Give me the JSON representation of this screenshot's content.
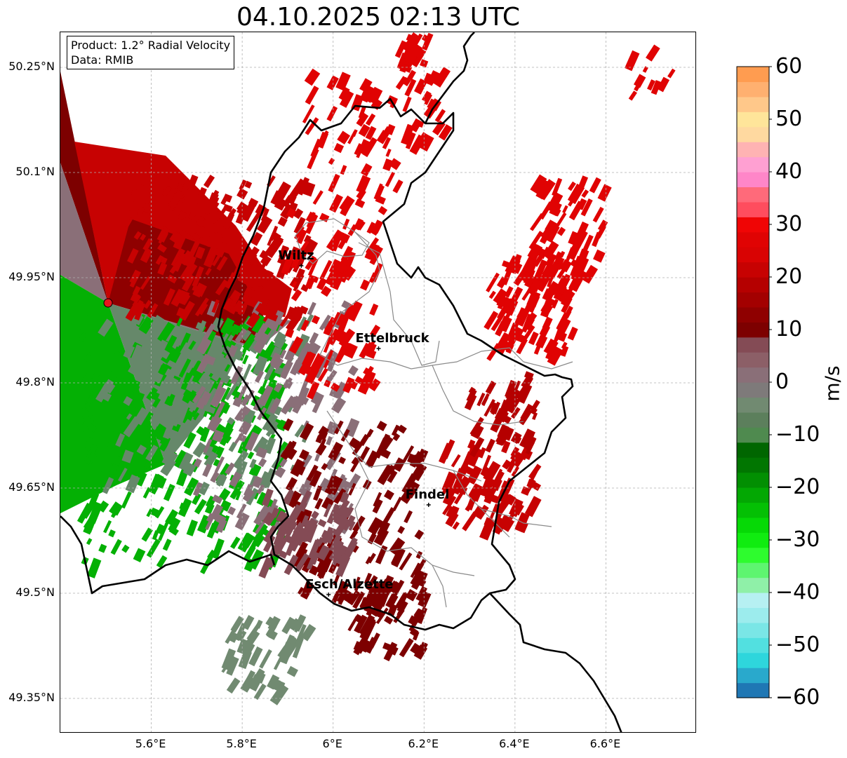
{
  "title": "04.10.2025 02:13 UTC",
  "info": {
    "product": "Product: 1.2° Radial Velocity",
    "source": "Data: RMIB"
  },
  "axes": {
    "lat_ticks": [
      "50.25°N",
      "50.1°N",
      "49.95°N",
      "49.8°N",
      "49.65°N",
      "49.5°N",
      "49.35°N"
    ],
    "lat_values": [
      50.25,
      50.1,
      49.95,
      49.8,
      49.65,
      49.5,
      49.35
    ],
    "lon_ticks": [
      "5.6°E",
      "5.8°E",
      "6°E",
      "6.2°E",
      "6.4°E",
      "6.6°E"
    ],
    "lon_values": [
      5.6,
      5.8,
      6.0,
      6.2,
      6.4,
      6.6
    ],
    "lat_range": [
      49.3,
      50.3
    ],
    "lon_range": [
      5.4,
      6.8
    ],
    "grid": true
  },
  "cities": [
    {
      "name": "Wiltz",
      "lon": 5.93,
      "lat": 49.967
    },
    {
      "name": "Ettelbruck",
      "lon": 6.1,
      "lat": 49.849
    },
    {
      "name": "Findel",
      "lon": 6.21,
      "lat": 49.626
    },
    {
      "name": "Esch/Alzette",
      "lon": 5.99,
      "lat": 49.498
    }
  ],
  "radar_site": {
    "lon": 5.505,
    "lat": 49.914,
    "color": "#e8141c"
  },
  "colorbar": {
    "unit": "m/s",
    "range": [
      -60,
      60
    ],
    "tick_labels": [
      "60",
      "50",
      "40",
      "30",
      "20",
      "10",
      "0",
      "−10",
      "−20",
      "−30",
      "−40",
      "−50",
      "−60"
    ],
    "tick_values": [
      60,
      50,
      40,
      30,
      20,
      10,
      0,
      -10,
      -20,
      -30,
      -40,
      -50,
      -60
    ],
    "colors": [
      "#1f77b4",
      "#29a9cc",
      "#2ed6dc",
      "#52e0e0",
      "#7ae6e6",
      "#9ceced",
      "#b6f0f2",
      "#8ff0a8",
      "#5ef570",
      "#2efc2e",
      "#10ec10",
      "#06d906",
      "#04c004",
      "#03a803",
      "#028f02",
      "#017601",
      "#006600",
      "#4f8a4f",
      "#5c7f5c",
      "#718a71",
      "#7e7a7a",
      "#8a6f78",
      "#8c5f67",
      "#844b55",
      "#7d0000",
      "#8f0000",
      "#a30000",
      "#b50000",
      "#c70202",
      "#d90303",
      "#e00303",
      "#f00505",
      "#ff4d5e",
      "#ff6a7a",
      "#ff86c8",
      "#ffa0d2",
      "#ffb3b3",
      "#ffd9a0",
      "#ffe59a",
      "#ffc88a",
      "#ffb070",
      "#ff9c50"
    ]
  },
  "colors": {
    "approach": "#e00303",
    "recede_dark": "#7d0000",
    "near_zero": "#7e6a70",
    "green": "#04b004",
    "grey_green": "#66886a",
    "border": "#000000",
    "canton": "#8a8a8a",
    "grid": "#b0b0b0"
  }
}
